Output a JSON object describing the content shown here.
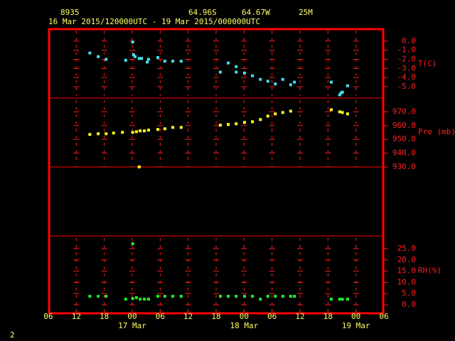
{
  "header": {
    "station": "8935",
    "lat": "64.96S",
    "lon": "64.67W",
    "elev": "25M",
    "period": "16 Mar 2015/120000UTC - 19 Mar 2015/000000UTC",
    "page": "2"
  },
  "day_labels": [
    {
      "value": 18,
      "label": "17 Mar"
    },
    {
      "value": 42,
      "label": "18 Mar"
    },
    {
      "value": 66,
      "label": "19 Mar"
    }
  ],
  "chart_data": [
    {
      "type": "scatter",
      "ylabel": "T(C)",
      "color": "#40e0f0",
      "xlim": [
        0,
        72
      ],
      "ylim": [
        -6.25,
        1.4
      ],
      "yticks": [
        {
          "value": 0,
          "label": "0.0"
        },
        {
          "value": -1,
          "label": "-1.0"
        },
        {
          "value": -2,
          "label": "-2.0"
        },
        {
          "value": -3,
          "label": "-3.0"
        },
        {
          "value": -4,
          "label": "-4.0"
        },
        {
          "value": -5,
          "label": "-5.0"
        }
      ],
      "x": [
        8.9,
        10.7,
        12.4,
        16.6,
        18.1,
        18.3,
        18.6,
        19.5,
        20.0,
        21.2,
        21.5,
        23.5,
        25.0,
        26.7,
        28.5,
        36.9,
        38.6,
        40.3,
        40.3,
        42.1,
        43.8,
        45.5,
        47.1,
        48.7,
        50.3,
        52.0,
        52.8,
        60.7,
        62.5,
        62.8,
        63.1,
        64.2
      ],
      "values": [
        -1.3,
        -1.7,
        -2.0,
        -2.1,
        -0.1,
        -1.5,
        -1.7,
        -1.9,
        -1.9,
        -2.3,
        -2.0,
        -1.8,
        -2.2,
        -2.2,
        -2.2,
        -3.4,
        -2.4,
        -2.8,
        -3.4,
        -3.5,
        -3.8,
        -4.2,
        -4.4,
        -4.7,
        -4.2,
        -4.8,
        -4.5,
        -4.5,
        -5.9,
        -5.7,
        -5.6,
        -4.9
      ]
    },
    {
      "type": "scatter",
      "ylabel": "Pre (mb)",
      "color": "#ffff20",
      "xlim": [
        0,
        72
      ],
      "ylim": [
        930,
        980
      ],
      "yticks": [
        {
          "value": 970,
          "label": "970.0"
        },
        {
          "value": 960,
          "label": "960.0"
        },
        {
          "value": 950,
          "label": "950.0"
        },
        {
          "value": 940,
          "label": "940.0"
        },
        {
          "value": 930,
          "label": "930.0"
        }
      ],
      "x": [
        8.9,
        10.7,
        12.4,
        14.0,
        15.9,
        18.1,
        18.9,
        19.7,
        20.6,
        21.5,
        23.5,
        25.0,
        26.7,
        28.5,
        36.9,
        38.6,
        40.3,
        42.1,
        43.8,
        45.5,
        47.1,
        48.7,
        50.3,
        52.0,
        60.7,
        62.5,
        63.1,
        64.2,
        19.5
      ],
      "values": [
        953.6,
        954.1,
        954.1,
        954.6,
        955.1,
        955.1,
        955.6,
        956.2,
        956.2,
        956.7,
        957.2,
        957.7,
        958.7,
        958.7,
        960.3,
        960.8,
        961.3,
        962.3,
        962.8,
        964.4,
        966.9,
        968.5,
        969.5,
        970.5,
        971.5,
        970.0,
        969.5,
        968.5,
        930.0
      ]
    },
    {
      "type": "scatter",
      "ylabel": "RH(%)",
      "color": "#20f020",
      "xlim": [
        0,
        72
      ],
      "ylim": [
        -4.1,
        30.7
      ],
      "yticks": [
        {
          "value": 0,
          "label": "0.0"
        },
        {
          "value": 5,
          "label": "5.0"
        },
        {
          "value": 10,
          "label": "10.0"
        },
        {
          "value": 15,
          "label": "15.0"
        },
        {
          "value": 20,
          "label": "20.0"
        },
        {
          "value": 25,
          "label": "25.0"
        }
      ],
      "xticks": [
        {
          "value": 0,
          "label": "06"
        },
        {
          "value": 6,
          "label": "12"
        },
        {
          "value": 12,
          "label": "18"
        },
        {
          "value": 18,
          "label": "00"
        },
        {
          "value": 24,
          "label": "06"
        },
        {
          "value": 30,
          "label": "12"
        },
        {
          "value": 36,
          "label": "18"
        },
        {
          "value": 42,
          "label": "00"
        },
        {
          "value": 48,
          "label": "06"
        },
        {
          "value": 54,
          "label": "12"
        },
        {
          "value": 60,
          "label": "18"
        },
        {
          "value": 66,
          "label": "00"
        },
        {
          "value": 72,
          "label": "06"
        }
      ],
      "x": [
        8.9,
        10.7,
        12.4,
        16.6,
        18.1,
        18.9,
        19.7,
        20.6,
        21.5,
        23.5,
        25.0,
        26.7,
        28.5,
        36.9,
        38.6,
        40.3,
        42.1,
        43.8,
        45.5,
        47.1,
        48.7,
        50.3,
        52.0,
        52.8,
        60.7,
        62.5,
        63.1,
        64.2,
        18.1
      ],
      "values": [
        3.8,
        3.8,
        3.8,
        2.5,
        2.8,
        3.2,
        2.5,
        2.5,
        2.5,
        3.8,
        3.8,
        3.8,
        3.8,
        3.8,
        3.8,
        3.8,
        3.8,
        3.8,
        2.5,
        3.8,
        3.8,
        3.8,
        3.8,
        3.8,
        2.5,
        2.5,
        2.5,
        2.5,
        27.2
      ]
    }
  ]
}
